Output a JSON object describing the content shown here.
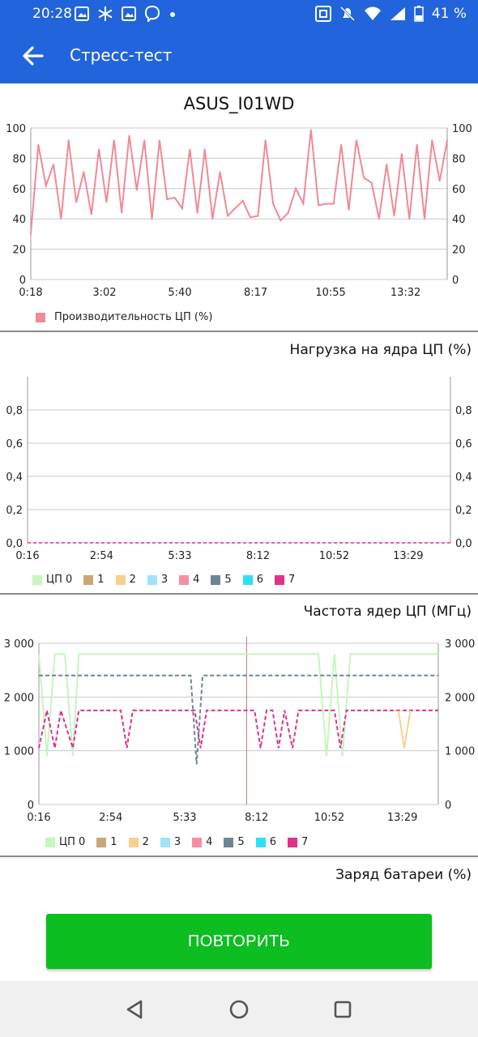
{
  "status_bar": {
    "time": "20:28",
    "battery": "41 %",
    "left_icons": [
      "gallery-icon",
      "snowflake-icon",
      "gallery-icon",
      "viber-icon",
      "dot-icon"
    ],
    "right_icons": [
      "nfc-icon",
      "mute-icon",
      "wifi-icon",
      "signal-icon",
      "battery-icon"
    ]
  },
  "app_bar": {
    "title": "Стресс-тест"
  },
  "device_name": "ASUS_I01WD",
  "perf_chart": {
    "type": "line",
    "legend": "Производительность ЦП (%)",
    "color": "#f08a96",
    "y_ticks": [
      "0",
      "20",
      "40",
      "60",
      "80",
      "100"
    ],
    "x_ticks": [
      "0:18",
      "3:02",
      "5:40",
      "8:17",
      "10:55",
      "13:32"
    ],
    "ylim": [
      0,
      100
    ],
    "values": [
      30,
      89,
      62,
      76,
      40,
      92,
      51,
      71,
      43,
      86,
      51,
      92,
      44,
      95,
      59,
      92,
      40,
      92,
      53,
      54,
      47,
      86,
      44,
      86,
      40,
      71,
      42,
      47,
      52,
      41,
      42,
      92,
      50,
      39,
      44,
      60,
      50,
      99,
      49,
      50,
      50,
      89,
      46,
      92,
      67,
      64,
      40,
      76,
      42,
      83,
      40,
      89,
      40,
      92,
      65,
      92
    ]
  },
  "load_chart": {
    "title": "Нагрузка на ядра ЦП (%)",
    "type": "line",
    "y_ticks": [
      "0,0",
      "0,2",
      "0,4",
      "0,6",
      "0,8"
    ],
    "x_ticks": [
      "0:16",
      "2:54",
      "5:33",
      "8:12",
      "10:52",
      "13:29"
    ],
    "ylim": [
      0,
      1
    ],
    "series_value": 0,
    "legend": [
      {
        "name": "ЦП 0",
        "color": "#c6f5c0"
      },
      {
        "name": "1",
        "color": "#c9a876"
      },
      {
        "name": "2",
        "color": "#f8d08c"
      },
      {
        "name": "3",
        "color": "#9fe4f6"
      },
      {
        "name": "4",
        "color": "#f58ea1"
      },
      {
        "name": "5",
        "color": "#6d8694"
      },
      {
        "name": "6",
        "color": "#2ee0f3"
      },
      {
        "name": "7",
        "color": "#e0318e"
      }
    ]
  },
  "freq_chart": {
    "title": "Частота ядер ЦП (МГц)",
    "type": "line",
    "y_ticks": [
      "0",
      "1 000",
      "2 000",
      "3 000"
    ],
    "x_ticks": [
      "0:16",
      "2:54",
      "5:33",
      "8:12",
      "10:52",
      "13:29"
    ],
    "ylim": [
      0,
      3000
    ],
    "legend": [
      {
        "name": "ЦП 0",
        "color": "#c6f5c0"
      },
      {
        "name": "1",
        "color": "#c9a876"
      },
      {
        "name": "2",
        "color": "#f8d08c"
      },
      {
        "name": "3",
        "color": "#9fe4f6"
      },
      {
        "name": "4",
        "color": "#f58ea1"
      },
      {
        "name": "5",
        "color": "#6d8694"
      },
      {
        "name": "6",
        "color": "#2ee0f3"
      },
      {
        "name": "7",
        "color": "#e0318e"
      }
    ],
    "series": [
      {
        "name": "ЦП 0",
        "color": "#c6f5c0",
        "points": [
          [
            0,
            2800
          ],
          [
            0.02,
            900
          ],
          [
            0.04,
            2800
          ],
          [
            0.065,
            2800
          ],
          [
            0.085,
            900
          ],
          [
            0.1,
            2800
          ],
          [
            0.7,
            2800
          ],
          [
            0.72,
            900
          ],
          [
            0.74,
            2800
          ],
          [
            0.76,
            900
          ],
          [
            0.78,
            2800
          ],
          [
            1,
            2800
          ]
        ]
      },
      {
        "name": "5",
        "color": "#6d8694",
        "points": [
          [
            0.0,
            2400
          ],
          [
            0.38,
            2400
          ],
          [
            0.395,
            750
          ],
          [
            0.41,
            2400
          ],
          [
            1,
            2400
          ]
        ]
      },
      {
        "name": "7",
        "color": "#e0318e",
        "points": [
          [
            0,
            1050
          ],
          [
            0.02,
            1750
          ],
          [
            0.04,
            1050
          ],
          [
            0.055,
            1750
          ],
          [
            0.085,
            1050
          ],
          [
            0.1,
            1750
          ],
          [
            0.205,
            1750
          ],
          [
            0.22,
            1050
          ],
          [
            0.235,
            1750
          ],
          [
            0.39,
            1750
          ],
          [
            0.405,
            1050
          ],
          [
            0.42,
            1750
          ],
          [
            0.54,
            1750
          ],
          [
            0.555,
            1050
          ],
          [
            0.57,
            1750
          ],
          [
            0.585,
            1750
          ],
          [
            0.6,
            1050
          ],
          [
            0.615,
            1750
          ],
          [
            0.635,
            1050
          ],
          [
            0.65,
            1750
          ],
          [
            0.74,
            1750
          ],
          [
            0.755,
            1050
          ],
          [
            0.77,
            1750
          ],
          [
            1,
            1750
          ]
        ]
      },
      {
        "name": "2",
        "color": "#f8d08c",
        "points": [
          [
            0.9,
            1750
          ],
          [
            0.915,
            1050
          ],
          [
            0.93,
            1750
          ]
        ]
      }
    ],
    "marker_x_fraction": 0.52
  },
  "battery_chart": {
    "title": "Заряд батареи (%)"
  },
  "repeat_button": {
    "label": "ПОВТОРИТЬ"
  },
  "nav": {
    "icons": [
      "back-triangle-icon",
      "home-circle-icon",
      "recents-square-icon"
    ]
  }
}
